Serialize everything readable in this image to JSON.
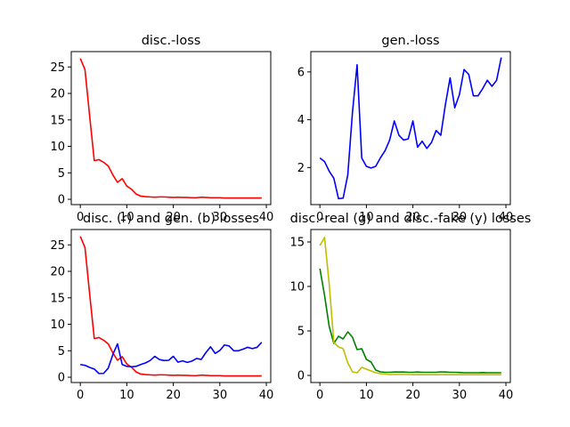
{
  "chart_data": [
    {
      "type": "line",
      "title": "disc.-loss",
      "xlabel": "",
      "ylabel": "",
      "xlim": [
        -1.95,
        40.95
      ],
      "ylim": [
        -1.0,
        27.9
      ],
      "xticks": [
        0,
        10,
        20,
        30,
        40
      ],
      "yticks": [
        0,
        5,
        10,
        15,
        20,
        25
      ],
      "grid": false,
      "series": [
        {
          "color": "#ff0000",
          "x": [
            0,
            1,
            2,
            3,
            4,
            5,
            6,
            7,
            8,
            9,
            10,
            11,
            12,
            13,
            14,
            15,
            16,
            17,
            18,
            19,
            20,
            21,
            22,
            23,
            24,
            25,
            26,
            27,
            28,
            29,
            30,
            31,
            32,
            33,
            34,
            35,
            36,
            37,
            38,
            39
          ],
          "values": [
            26.6,
            24.5,
            15.8,
            7.3,
            7.5,
            7.0,
            6.3,
            4.6,
            3.2,
            3.9,
            2.5,
            1.9,
            1.0,
            0.6,
            0.5,
            0.45,
            0.4,
            0.45,
            0.45,
            0.4,
            0.35,
            0.4,
            0.35,
            0.35,
            0.3,
            0.3,
            0.4,
            0.35,
            0.3,
            0.3,
            0.3,
            0.25,
            0.25,
            0.25,
            0.25,
            0.25,
            0.25,
            0.25,
            0.25,
            0.25
          ]
        }
      ]
    },
    {
      "type": "line",
      "title": "gen.-loss",
      "xlabel": "",
      "ylabel": "",
      "xlim": [
        -1.95,
        40.95
      ],
      "ylim": [
        0.45,
        6.85
      ],
      "xticks": [
        0,
        10,
        20,
        30,
        40
      ],
      "yticks": [
        2,
        4,
        6
      ],
      "grid": false,
      "series": [
        {
          "color": "#0000ff",
          "x": [
            0,
            1,
            2,
            3,
            4,
            5,
            6,
            7,
            8,
            9,
            10,
            11,
            12,
            13,
            14,
            15,
            16,
            17,
            18,
            19,
            20,
            21,
            22,
            23,
            24,
            25,
            26,
            27,
            28,
            29,
            30,
            31,
            32,
            33,
            34,
            35,
            36,
            37,
            38,
            39
          ],
          "values": [
            2.4,
            2.25,
            1.85,
            1.55,
            0.7,
            0.72,
            1.7,
            4.3,
            6.3,
            2.4,
            2.05,
            1.98,
            2.05,
            2.4,
            2.7,
            3.15,
            3.95,
            3.35,
            3.15,
            3.2,
            3.95,
            2.85,
            3.1,
            2.8,
            3.05,
            3.55,
            3.35,
            4.65,
            5.75,
            4.5,
            5.05,
            6.1,
            5.9,
            5.0,
            5.0,
            5.3,
            5.65,
            5.4,
            5.65,
            6.6
          ]
        }
      ]
    },
    {
      "type": "line",
      "title": "disc. (r) and gen. (b) losses",
      "xlabel": "",
      "ylabel": "",
      "xlim": [
        -1.95,
        40.95
      ],
      "ylim": [
        -1.0,
        27.9
      ],
      "xticks": [
        0,
        10,
        20,
        30,
        40
      ],
      "yticks": [
        0,
        5,
        10,
        15,
        20,
        25
      ],
      "grid": false,
      "series": [
        {
          "color": "#ff0000",
          "x": [
            0,
            1,
            2,
            3,
            4,
            5,
            6,
            7,
            8,
            9,
            10,
            11,
            12,
            13,
            14,
            15,
            16,
            17,
            18,
            19,
            20,
            21,
            22,
            23,
            24,
            25,
            26,
            27,
            28,
            29,
            30,
            31,
            32,
            33,
            34,
            35,
            36,
            37,
            38,
            39
          ],
          "values": [
            26.6,
            24.5,
            15.8,
            7.3,
            7.5,
            7.0,
            6.3,
            4.6,
            3.2,
            3.9,
            2.5,
            1.9,
            1.0,
            0.6,
            0.5,
            0.45,
            0.4,
            0.45,
            0.45,
            0.4,
            0.35,
            0.4,
            0.35,
            0.35,
            0.3,
            0.3,
            0.4,
            0.35,
            0.3,
            0.3,
            0.3,
            0.25,
            0.25,
            0.25,
            0.25,
            0.25,
            0.25,
            0.25,
            0.25,
            0.25
          ]
        },
        {
          "color": "#0000ff",
          "x": [
            0,
            1,
            2,
            3,
            4,
            5,
            6,
            7,
            8,
            9,
            10,
            11,
            12,
            13,
            14,
            15,
            16,
            17,
            18,
            19,
            20,
            21,
            22,
            23,
            24,
            25,
            26,
            27,
            28,
            29,
            30,
            31,
            32,
            33,
            34,
            35,
            36,
            37,
            38,
            39
          ],
          "values": [
            2.4,
            2.25,
            1.85,
            1.55,
            0.7,
            0.72,
            1.7,
            4.3,
            6.3,
            2.4,
            2.05,
            1.98,
            2.05,
            2.4,
            2.7,
            3.15,
            3.95,
            3.35,
            3.15,
            3.2,
            3.95,
            2.85,
            3.1,
            2.8,
            3.05,
            3.55,
            3.35,
            4.65,
            5.75,
            4.5,
            5.05,
            6.1,
            5.9,
            5.0,
            5.0,
            5.3,
            5.65,
            5.4,
            5.65,
            6.6
          ]
        }
      ]
    },
    {
      "type": "line",
      "title": "disc.-real (g) and disc.-fake (y) losses",
      "xlabel": "",
      "ylabel": "",
      "xlim": [
        -1.95,
        40.95
      ],
      "ylim": [
        -0.8,
        16.4
      ],
      "xticks": [
        0,
        10,
        20,
        30,
        40
      ],
      "yticks": [
        0,
        5,
        10,
        15
      ],
      "grid": false,
      "series": [
        {
          "color": "#008000",
          "x": [
            0,
            1,
            2,
            3,
            4,
            5,
            6,
            7,
            8,
            9,
            10,
            11,
            12,
            13,
            14,
            15,
            16,
            17,
            18,
            19,
            20,
            21,
            22,
            23,
            24,
            25,
            26,
            27,
            28,
            29,
            30,
            31,
            32,
            33,
            34,
            35,
            36,
            37,
            38,
            39
          ],
          "values": [
            12.0,
            9.0,
            5.5,
            3.6,
            4.4,
            4.1,
            4.9,
            4.3,
            2.9,
            3.0,
            1.8,
            1.5,
            0.6,
            0.4,
            0.35,
            0.35,
            0.38,
            0.38,
            0.38,
            0.35,
            0.35,
            0.38,
            0.35,
            0.35,
            0.35,
            0.35,
            0.4,
            0.38,
            0.35,
            0.35,
            0.33,
            0.3,
            0.3,
            0.3,
            0.3,
            0.32,
            0.3,
            0.3,
            0.3,
            0.3
          ]
        },
        {
          "color": "#bfbf00",
          "x": [
            0,
            1,
            2,
            3,
            4,
            5,
            6,
            7,
            8,
            9,
            10,
            11,
            12,
            13,
            14,
            15,
            16,
            17,
            18,
            19,
            20,
            21,
            22,
            23,
            24,
            25,
            26,
            27,
            28,
            29,
            30,
            31,
            32,
            33,
            34,
            35,
            36,
            37,
            38,
            39
          ],
          "values": [
            14.6,
            15.5,
            10.3,
            3.7,
            3.2,
            3.0,
            1.4,
            0.4,
            0.3,
            0.9,
            0.7,
            0.5,
            0.3,
            0.2,
            0.15,
            0.1,
            0.1,
            0.1,
            0.1,
            0.1,
            0.08,
            0.08,
            0.08,
            0.08,
            0.08,
            0.08,
            0.08,
            0.08,
            0.08,
            0.08,
            0.08,
            0.08,
            0.08,
            0.08,
            0.08,
            0.08,
            0.08,
            0.08,
            0.08,
            0.08
          ]
        }
      ]
    }
  ]
}
